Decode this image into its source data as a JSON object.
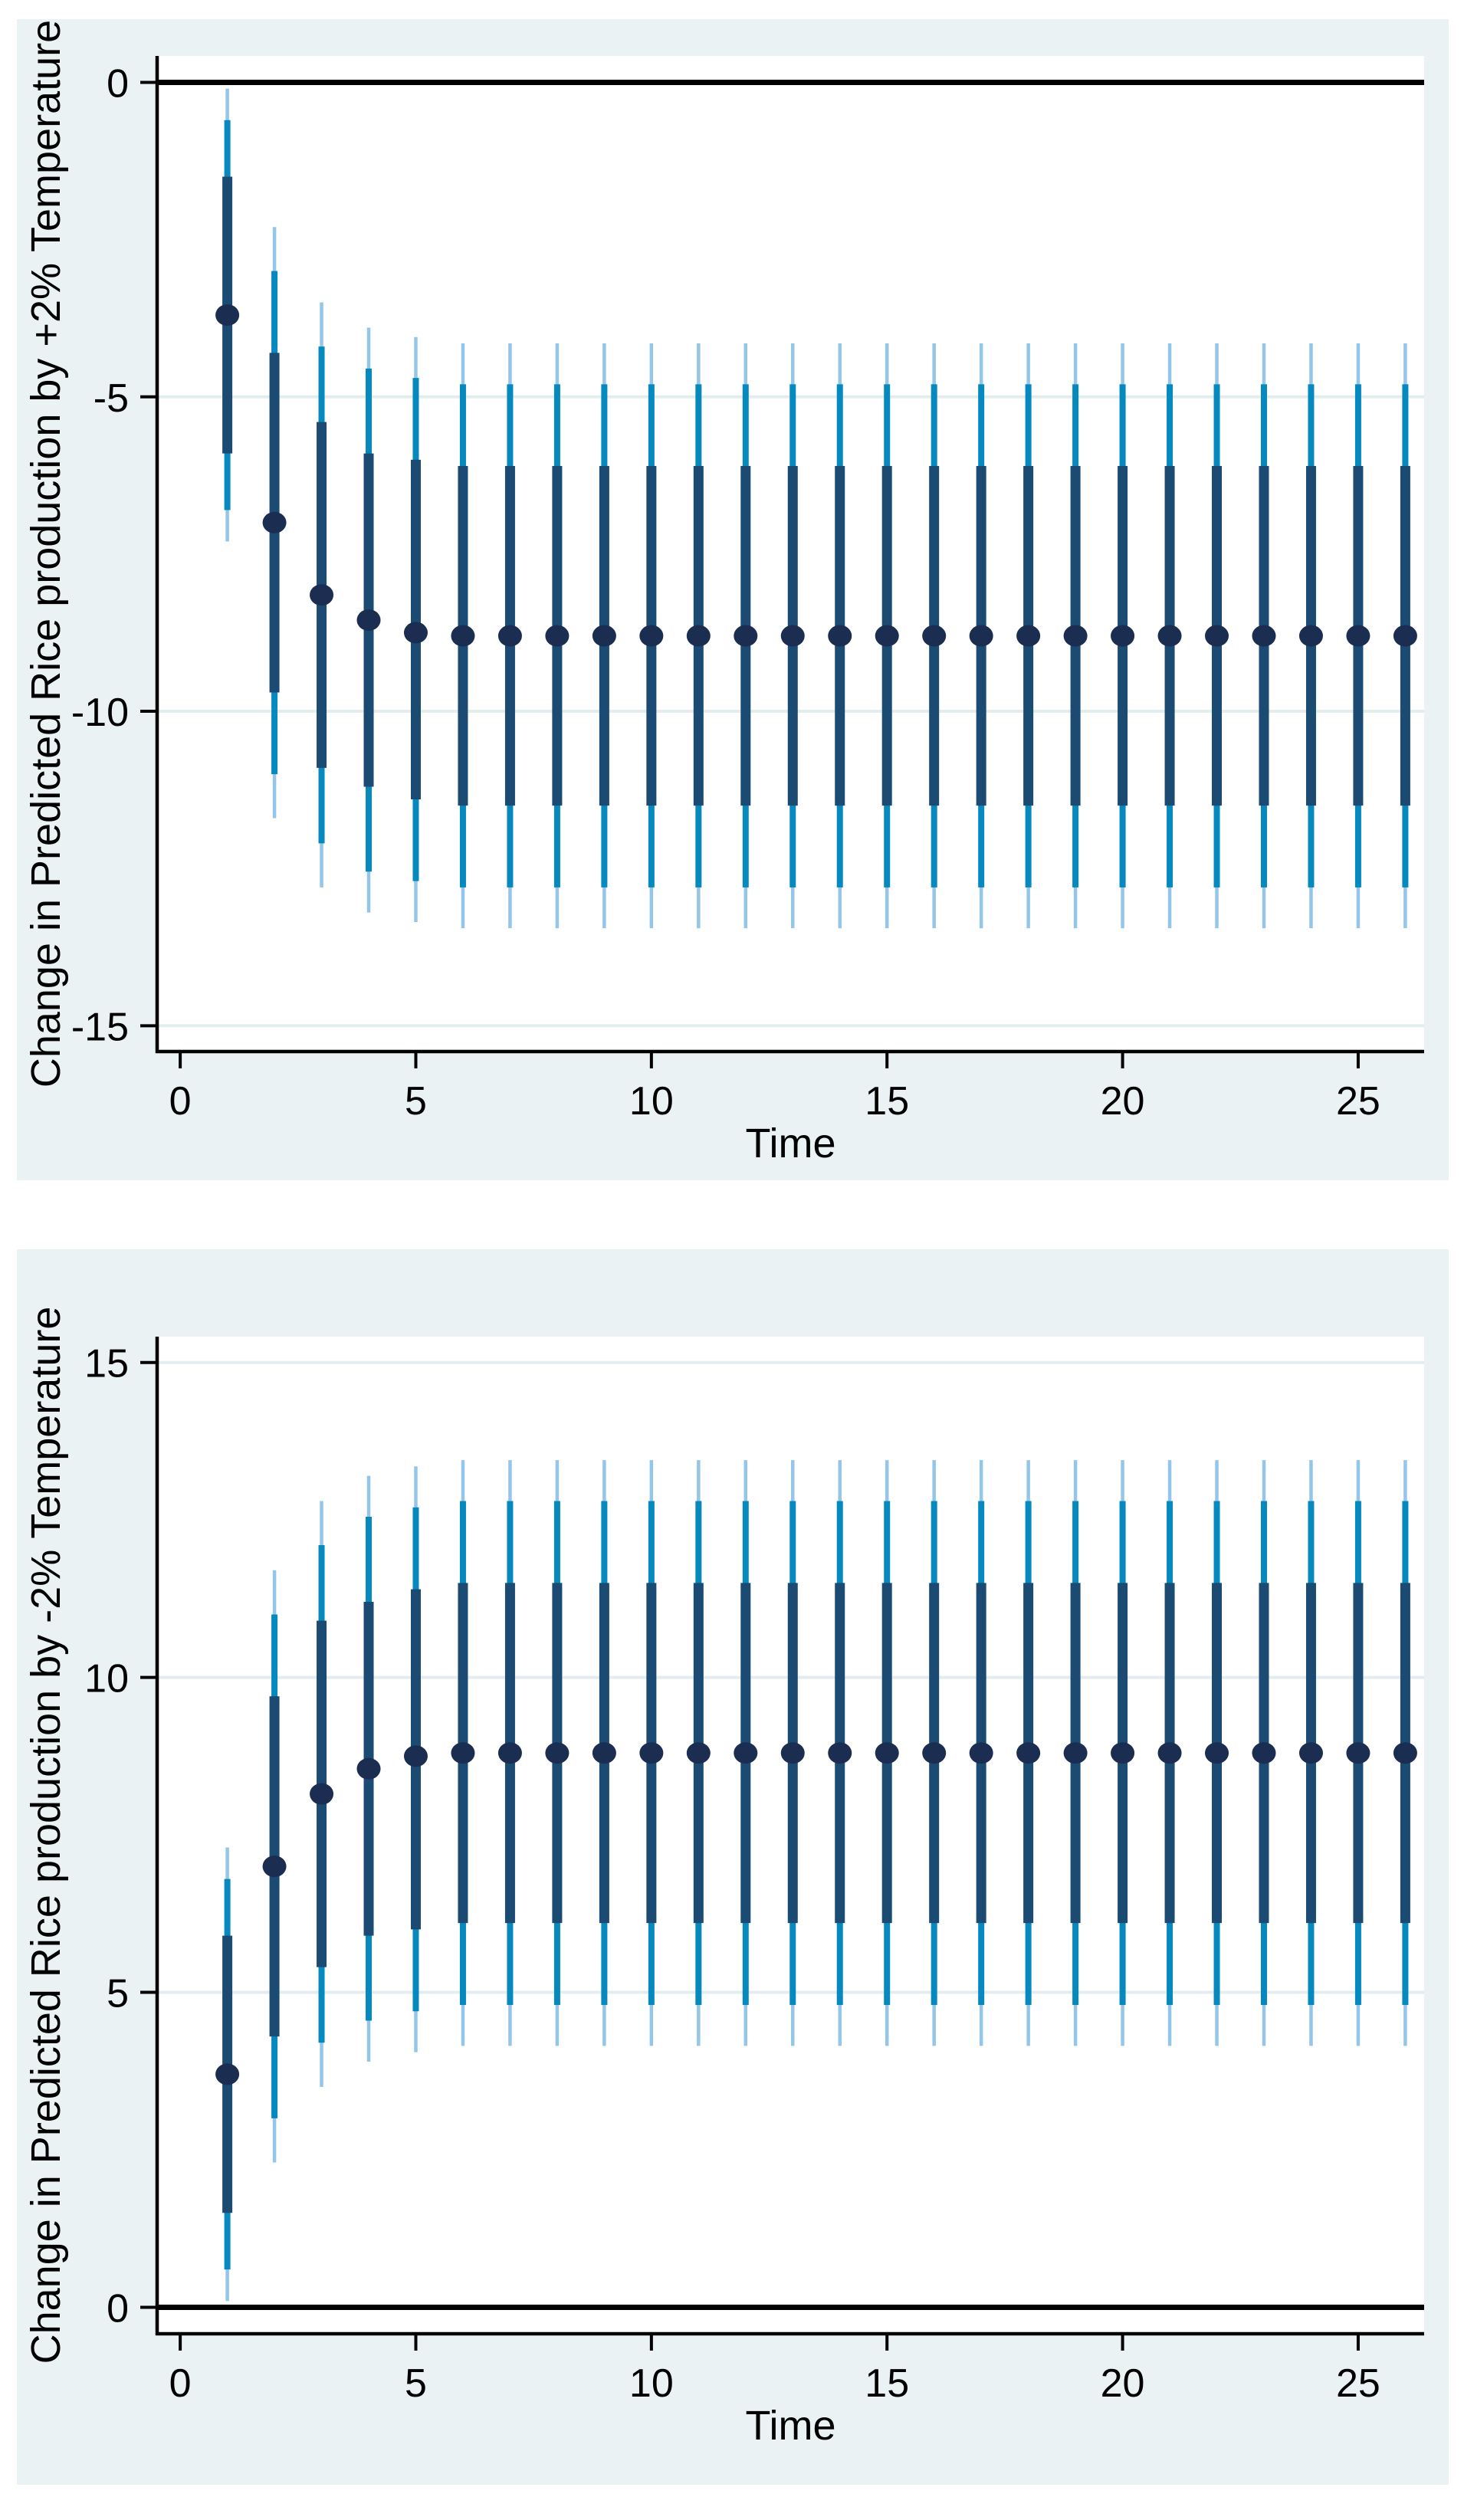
{
  "colors": {
    "panel_background": "#eaf2f3",
    "plot_background": "#ffffff",
    "gridline": "#e3edf0",
    "axis": "#000000",
    "zero_line": "#000000",
    "ci_outer": "#93c6e9",
    "ci_mid": "#0689bf",
    "ci_inner": "#1b4a73",
    "point": "#1b2d50"
  },
  "chart_data": [
    {
      "type": "errorbar",
      "title": "",
      "xlabel": "Time",
      "ylabel": "Change in Predicted Rice production by +2% Temperature",
      "xlim": [
        -0.49,
        26.4
      ],
      "ylim": [
        -15.41,
        0.42
      ],
      "xticks": [
        0,
        5,
        10,
        15,
        20,
        25
      ],
      "yticks": [
        0,
        -5,
        -10,
        -15
      ],
      "ytick_labels": [
        "0",
        "-5",
        "-10",
        "-15"
      ],
      "zero_line": 0,
      "grid": true,
      "legend": false,
      "x": [
        1,
        2,
        3,
        4,
        5,
        6,
        7,
        8,
        9,
        10,
        11,
        12,
        13,
        14,
        15,
        16,
        17,
        18,
        19,
        20,
        21,
        22,
        23,
        24,
        25,
        26
      ],
      "point": [
        -3.7,
        -7,
        -8.15,
        -8.55,
        -8.75,
        -8.8,
        -8.8,
        -8.8,
        -8.8,
        -8.8,
        -8.8,
        -8.8,
        -8.8,
        -8.8,
        -8.8,
        -8.8,
        -8.8,
        -8.8,
        -8.8,
        -8.8,
        -8.8,
        -8.8,
        -8.8,
        -8.8,
        -8.8,
        -8.8
      ],
      "ci_inner": [
        [
          -5.9,
          -1.5
        ],
        [
          -9.7,
          -4.3
        ],
        [
          -10.9,
          -5.4
        ],
        [
          -11.2,
          -5.9
        ],
        [
          -11.4,
          -6
        ],
        [
          -11.5,
          -6.1
        ],
        [
          -11.5,
          -6.1
        ],
        [
          -11.5,
          -6.1
        ],
        [
          -11.5,
          -6.1
        ],
        [
          -11.5,
          -6.1
        ],
        [
          -11.5,
          -6.1
        ],
        [
          -11.5,
          -6.1
        ],
        [
          -11.5,
          -6.1
        ],
        [
          -11.5,
          -6.1
        ],
        [
          -11.5,
          -6.1
        ],
        [
          -11.5,
          -6.1
        ],
        [
          -11.5,
          -6.1
        ],
        [
          -11.5,
          -6.1
        ],
        [
          -11.5,
          -6.1
        ],
        [
          -11.5,
          -6.1
        ],
        [
          -11.5,
          -6.1
        ],
        [
          -11.5,
          -6.1
        ],
        [
          -11.5,
          -6.1
        ],
        [
          -11.5,
          -6.1
        ],
        [
          -11.5,
          -6.1
        ],
        [
          -11.5,
          -6.1
        ]
      ],
      "ci_mid": [
        [
          -6.8,
          -0.6
        ],
        [
          -11,
          -3
        ],
        [
          -12.1,
          -4.2
        ],
        [
          -12.55,
          -4.55
        ],
        [
          -12.7,
          -4.7
        ],
        [
          -12.8,
          -4.8
        ],
        [
          -12.8,
          -4.8
        ],
        [
          -12.8,
          -4.8
        ],
        [
          -12.8,
          -4.8
        ],
        [
          -12.8,
          -4.8
        ],
        [
          -12.8,
          -4.8
        ],
        [
          -12.8,
          -4.8
        ],
        [
          -12.8,
          -4.8
        ],
        [
          -12.8,
          -4.8
        ],
        [
          -12.8,
          -4.8
        ],
        [
          -12.8,
          -4.8
        ],
        [
          -12.8,
          -4.8
        ],
        [
          -12.8,
          -4.8
        ],
        [
          -12.8,
          -4.8
        ],
        [
          -12.8,
          -4.8
        ],
        [
          -12.8,
          -4.8
        ],
        [
          -12.8,
          -4.8
        ],
        [
          -12.8,
          -4.8
        ],
        [
          -12.8,
          -4.8
        ],
        [
          -12.8,
          -4.8
        ],
        [
          -12.8,
          -4.8
        ]
      ],
      "ci_outer": [
        [
          -7.3,
          -0.1
        ],
        [
          -11.7,
          -2.3
        ],
        [
          -12.8,
          -3.5
        ],
        [
          -13.2,
          -3.9
        ],
        [
          -13.35,
          -4.05
        ],
        [
          -13.45,
          -4.15
        ],
        [
          -13.45,
          -4.15
        ],
        [
          -13.45,
          -4.15
        ],
        [
          -13.45,
          -4.15
        ],
        [
          -13.45,
          -4.15
        ],
        [
          -13.45,
          -4.15
        ],
        [
          -13.45,
          -4.15
        ],
        [
          -13.45,
          -4.15
        ],
        [
          -13.45,
          -4.15
        ],
        [
          -13.45,
          -4.15
        ],
        [
          -13.45,
          -4.15
        ],
        [
          -13.45,
          -4.15
        ],
        [
          -13.45,
          -4.15
        ],
        [
          -13.45,
          -4.15
        ],
        [
          -13.45,
          -4.15
        ],
        [
          -13.45,
          -4.15
        ],
        [
          -13.45,
          -4.15
        ],
        [
          -13.45,
          -4.15
        ],
        [
          -13.45,
          -4.15
        ],
        [
          -13.45,
          -4.15
        ],
        [
          -13.45,
          -4.15
        ]
      ]
    },
    {
      "type": "errorbar",
      "title": "",
      "xlabel": "Time",
      "ylabel": "Change in Predicted Rice production by -2% Temperature",
      "xlim": [
        -0.49,
        26.4
      ],
      "ylim": [
        -0.42,
        15.41
      ],
      "xticks": [
        0,
        5,
        10,
        15,
        20,
        25
      ],
      "yticks": [
        15,
        10,
        5,
        0
      ],
      "ytick_labels": [
        "15",
        "10",
        "5",
        "0"
      ],
      "zero_line": 0,
      "grid": true,
      "legend": false,
      "x": [
        1,
        2,
        3,
        4,
        5,
        6,
        7,
        8,
        9,
        10,
        11,
        12,
        13,
        14,
        15,
        16,
        17,
        18,
        19,
        20,
        21,
        22,
        23,
        24,
        25,
        26
      ],
      "point": [
        3.7,
        7,
        8.15,
        8.55,
        8.75,
        8.8,
        8.8,
        8.8,
        8.8,
        8.8,
        8.8,
        8.8,
        8.8,
        8.8,
        8.8,
        8.8,
        8.8,
        8.8,
        8.8,
        8.8,
        8.8,
        8.8,
        8.8,
        8.8,
        8.8,
        8.8
      ],
      "ci_inner": [
        [
          1.5,
          5.9
        ],
        [
          4.3,
          9.7
        ],
        [
          5.4,
          10.9
        ],
        [
          5.9,
          11.2
        ],
        [
          6,
          11.4
        ],
        [
          6.1,
          11.5
        ],
        [
          6.1,
          11.5
        ],
        [
          6.1,
          11.5
        ],
        [
          6.1,
          11.5
        ],
        [
          6.1,
          11.5
        ],
        [
          6.1,
          11.5
        ],
        [
          6.1,
          11.5
        ],
        [
          6.1,
          11.5
        ],
        [
          6.1,
          11.5
        ],
        [
          6.1,
          11.5
        ],
        [
          6.1,
          11.5
        ],
        [
          6.1,
          11.5
        ],
        [
          6.1,
          11.5
        ],
        [
          6.1,
          11.5
        ],
        [
          6.1,
          11.5
        ],
        [
          6.1,
          11.5
        ],
        [
          6.1,
          11.5
        ],
        [
          6.1,
          11.5
        ],
        [
          6.1,
          11.5
        ],
        [
          6.1,
          11.5
        ],
        [
          6.1,
          11.5
        ]
      ],
      "ci_mid": [
        [
          0.6,
          6.8
        ],
        [
          3,
          11
        ],
        [
          4.2,
          12.1
        ],
        [
          4.55,
          12.55
        ],
        [
          4.7,
          12.7
        ],
        [
          4.8,
          12.8
        ],
        [
          4.8,
          12.8
        ],
        [
          4.8,
          12.8
        ],
        [
          4.8,
          12.8
        ],
        [
          4.8,
          12.8
        ],
        [
          4.8,
          12.8
        ],
        [
          4.8,
          12.8
        ],
        [
          4.8,
          12.8
        ],
        [
          4.8,
          12.8
        ],
        [
          4.8,
          12.8
        ],
        [
          4.8,
          12.8
        ],
        [
          4.8,
          12.8
        ],
        [
          4.8,
          12.8
        ],
        [
          4.8,
          12.8
        ],
        [
          4.8,
          12.8
        ],
        [
          4.8,
          12.8
        ],
        [
          4.8,
          12.8
        ],
        [
          4.8,
          12.8
        ],
        [
          4.8,
          12.8
        ],
        [
          4.8,
          12.8
        ],
        [
          4.8,
          12.8
        ]
      ],
      "ci_outer": [
        [
          0.1,
          7.3
        ],
        [
          2.3,
          11.7
        ],
        [
          3.5,
          12.8
        ],
        [
          3.9,
          13.2
        ],
        [
          4.05,
          13.35
        ],
        [
          4.15,
          13.45
        ],
        [
          4.15,
          13.45
        ],
        [
          4.15,
          13.45
        ],
        [
          4.15,
          13.45
        ],
        [
          4.15,
          13.45
        ],
        [
          4.15,
          13.45
        ],
        [
          4.15,
          13.45
        ],
        [
          4.15,
          13.45
        ],
        [
          4.15,
          13.45
        ],
        [
          4.15,
          13.45
        ],
        [
          4.15,
          13.45
        ],
        [
          4.15,
          13.45
        ],
        [
          4.15,
          13.45
        ],
        [
          4.15,
          13.45
        ],
        [
          4.15,
          13.45
        ],
        [
          4.15,
          13.45
        ],
        [
          4.15,
          13.45
        ],
        [
          4.15,
          13.45
        ],
        [
          4.15,
          13.45
        ],
        [
          4.15,
          13.45
        ],
        [
          4.15,
          13.45
        ]
      ]
    }
  ]
}
